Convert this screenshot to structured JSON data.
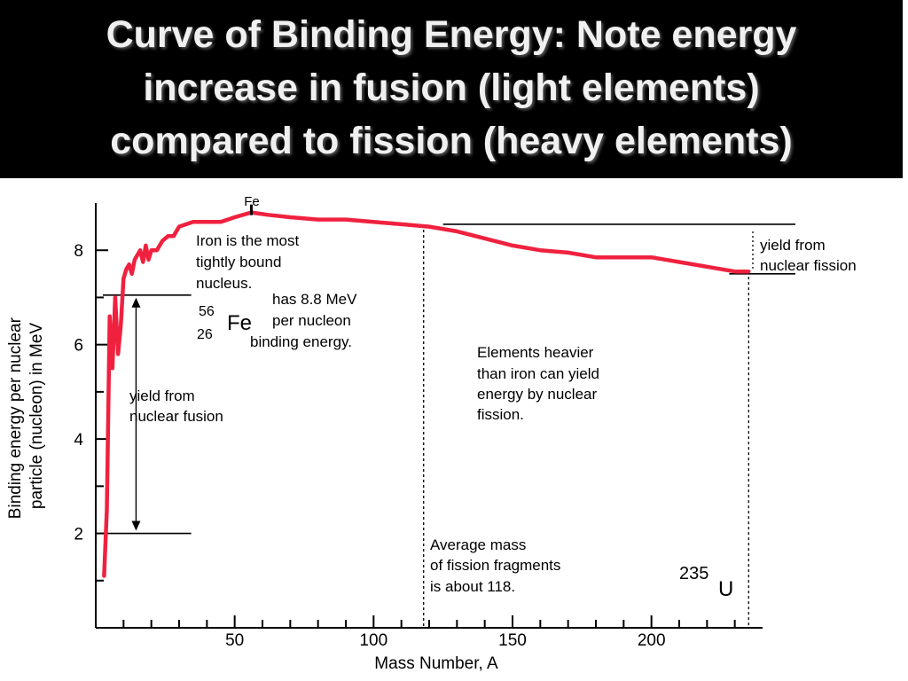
{
  "slide": {
    "title_lines": [
      "Curve of Binding Energy: Note energy",
      "increase in fusion (light elements)",
      "compared to fission (heavy elements)"
    ]
  },
  "colors": {
    "title_background": "#000000",
    "title_text": "#f0f0f0",
    "curve": "#f0213f",
    "axes": "#000000"
  },
  "chart_data": {
    "type": "line",
    "xlabel": "Mass Number, A",
    "ylabel_lines": [
      "Binding energy per nuclear",
      "particle (nucleon) in MeV"
    ],
    "xlim": [
      0,
      240
    ],
    "ylim": [
      0,
      9
    ],
    "x_ticks": [
      50,
      100,
      150,
      200
    ],
    "y_ticks": [
      2,
      4,
      6,
      8
    ],
    "x_minor_step": 10,
    "y_minor_step": 1,
    "grid": false,
    "series": [
      {
        "x": [
          3,
          4,
          5,
          6,
          7,
          8,
          9,
          10,
          11,
          12,
          13,
          14,
          15,
          16,
          17,
          18,
          19,
          20,
          22,
          24,
          26,
          28,
          30,
          35,
          40,
          45,
          50,
          56,
          62,
          70,
          80,
          90,
          100,
          110,
          120,
          130,
          140,
          150,
          160,
          170,
          180,
          190,
          200,
          210,
          220,
          230,
          235
        ],
        "y": [
          1.1,
          2.5,
          6.6,
          5.5,
          7.0,
          5.8,
          6.4,
          7.4,
          7.6,
          7.7,
          7.5,
          7.8,
          7.9,
          8.0,
          7.75,
          8.1,
          7.8,
          8.0,
          8.0,
          8.2,
          8.3,
          8.3,
          8.5,
          8.6,
          8.6,
          8.6,
          8.7,
          8.8,
          8.75,
          8.7,
          8.65,
          8.65,
          8.6,
          8.55,
          8.5,
          8.4,
          8.25,
          8.1,
          8.0,
          7.95,
          7.85,
          7.85,
          7.85,
          7.75,
          7.65,
          7.55,
          7.55
        ]
      }
    ],
    "annotations": {
      "fe_marker": {
        "label": "Fe",
        "x": 56,
        "y": 8.8
      },
      "iron_text": [
        "Iron is the most",
        "tightly bound",
        "nucleus."
      ],
      "fe_isotope": {
        "mass": "56",
        "atomic": "26",
        "symbol": "Fe"
      },
      "fe_energy_text": [
        "has 8.8 MeV",
        "per nucleon",
        "binding energy."
      ],
      "fusion_label": [
        "yield from",
        "nuclear fusion"
      ],
      "fusion_range": {
        "x": 20,
        "y_low": 2.0,
        "y_high": 7.05
      },
      "fission_label": [
        "yield from",
        "nuclear fission"
      ],
      "fission_range": {
        "x_start": 125,
        "x_end": 240,
        "y_high": 8.55,
        "y_low": 7.5
      },
      "heavy_text": [
        "Elements heavier",
        "than iron can yield",
        "energy by nuclear",
        "fission."
      ],
      "fragments_text": [
        "Average mass",
        "of fission fragments",
        "is about 118."
      ],
      "fragments_x": 118,
      "u_isotope": {
        "mass": "235",
        "symbol": "U",
        "x": 235
      }
    }
  }
}
